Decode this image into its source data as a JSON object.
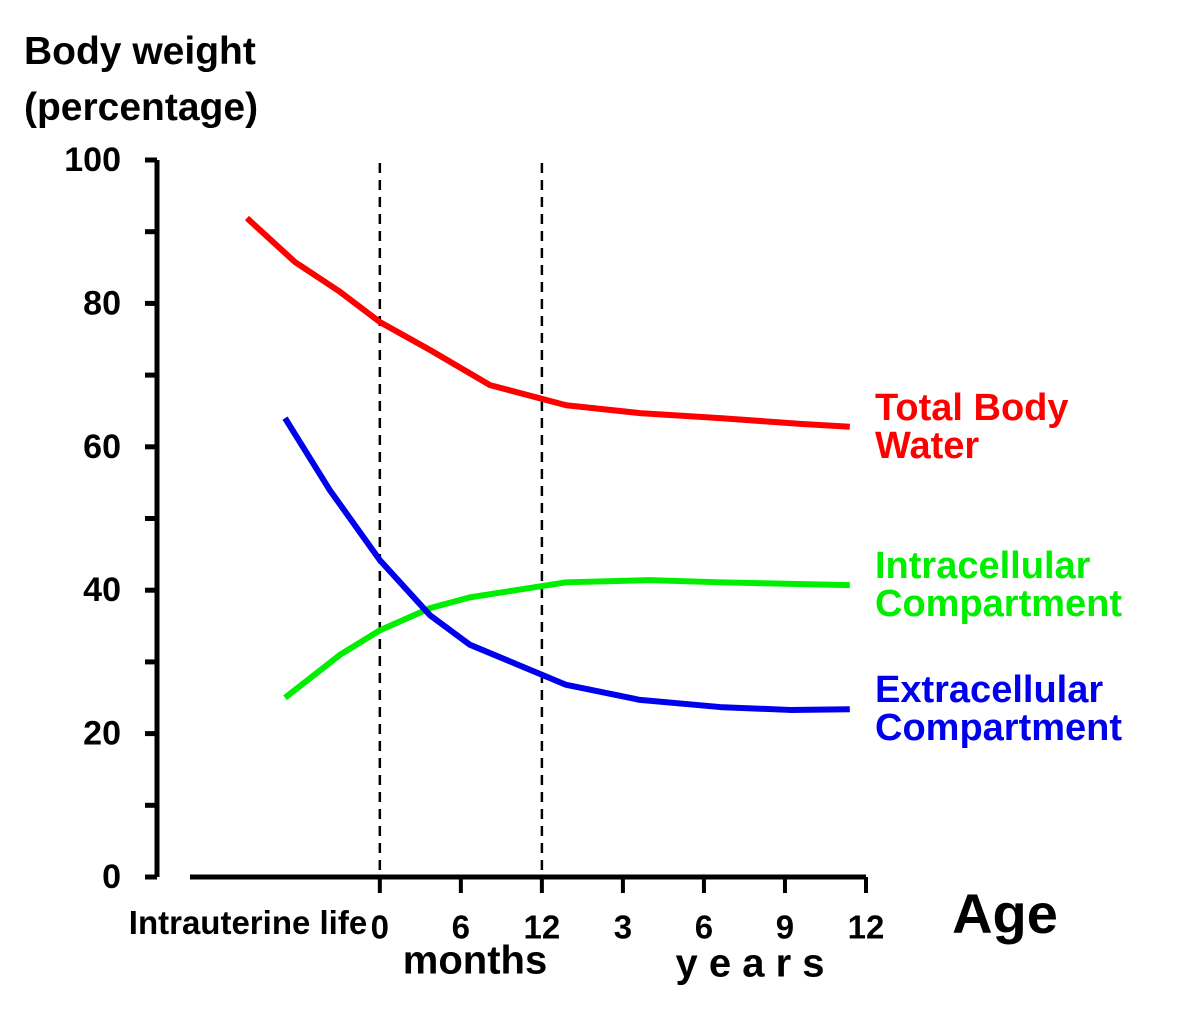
{
  "chart_data": {
    "type": "line",
    "ylabel": "Body weight (percentage)",
    "xlabel": "Age",
    "x_extra_label": "Intrauterine life",
    "x_groups": [
      "months",
      "y e a r s"
    ],
    "ylim": [
      0,
      100
    ],
    "yticks": [
      0,
      20,
      40,
      60,
      80,
      100
    ],
    "minor_yticks": [
      10,
      30,
      50,
      70,
      90
    ],
    "xlim": [
      -2.75,
      6
    ],
    "xticks": [
      {
        "value": 0,
        "label": "0"
      },
      {
        "value": 1,
        "label": "6"
      },
      {
        "value": 2,
        "label": "12"
      },
      {
        "value": 3,
        "label": "3"
      },
      {
        "value": 4,
        "label": "6"
      },
      {
        "value": 5,
        "label": "9"
      },
      {
        "value": 6,
        "label": "12"
      }
    ],
    "vlines": [
      0,
      2
    ],
    "series": [
      {
        "name": "Total Body Water",
        "color": "#ff0000",
        "x": [
          -1.64,
          -1.05,
          -0.49,
          0,
          0.62,
          1.36,
          2.3,
          3.21,
          4.2,
          5.19,
          5.8
        ],
        "values": [
          91.9,
          85.8,
          81.6,
          77.4,
          73.5,
          68.6,
          65.8,
          64.7,
          64,
          63.2,
          62.8
        ]
      },
      {
        "name": "Intracellular Compartment",
        "color": "#00ee00",
        "x": [
          -1.17,
          -0.49,
          0,
          0.62,
          1.11,
          2.3,
          3.33,
          4.2,
          5.8
        ],
        "values": [
          25,
          31,
          34.4,
          37.5,
          39,
          41.1,
          41.4,
          41.1,
          40.7
        ]
      },
      {
        "name": "Extracellular Compartment",
        "color": "#0000ee",
        "x": [
          -1.17,
          -0.62,
          0,
          0.62,
          1.11,
          2.3,
          3.21,
          4.2,
          5.06,
          5.8
        ],
        "values": [
          64,
          54,
          44.2,
          36.5,
          32.4,
          26.8,
          24.7,
          23.7,
          23.3,
          23.4
        ]
      }
    ]
  }
}
